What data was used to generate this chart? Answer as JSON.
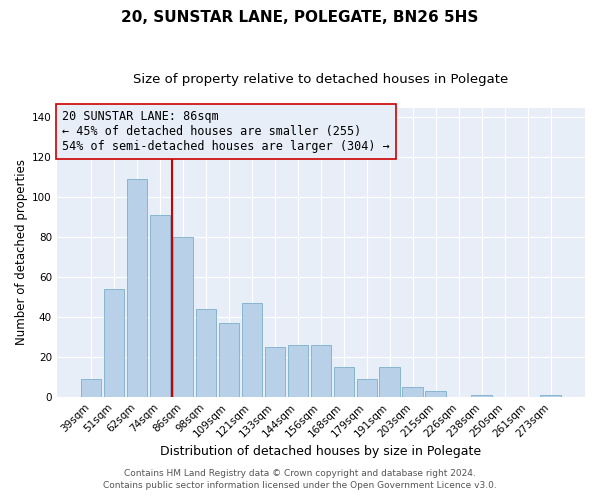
{
  "title": "20, SUNSTAR LANE, POLEGATE, BN26 5HS",
  "subtitle": "Size of property relative to detached houses in Polegate",
  "xlabel": "Distribution of detached houses by size in Polegate",
  "ylabel": "Number of detached properties",
  "bar_labels": [
    "39sqm",
    "51sqm",
    "62sqm",
    "74sqm",
    "86sqm",
    "98sqm",
    "109sqm",
    "121sqm",
    "133sqm",
    "144sqm",
    "156sqm",
    "168sqm",
    "179sqm",
    "191sqm",
    "203sqm",
    "215sqm",
    "226sqm",
    "238sqm",
    "250sqm",
    "261sqm",
    "273sqm"
  ],
  "bar_values": [
    9,
    54,
    109,
    91,
    80,
    44,
    37,
    47,
    25,
    26,
    26,
    15,
    9,
    15,
    5,
    3,
    0,
    1,
    0,
    0,
    1
  ],
  "bar_color": "#b8d0e8",
  "bar_edge_color": "#7aafc8",
  "vline_color": "#cc0000",
  "annotation_text": "20 SUNSTAR LANE: 86sqm\n← 45% of detached houses are smaller (255)\n54% of semi-detached houses are larger (304) →",
  "annotation_box_edgecolor": "#cc0000",
  "ylim": [
    0,
    145
  ],
  "yticks": [
    0,
    20,
    40,
    60,
    80,
    100,
    120,
    140
  ],
  "plot_bg_color": "#e8eef8",
  "fig_bg_color": "#ffffff",
  "footer_line1": "Contains HM Land Registry data © Crown copyright and database right 2024.",
  "footer_line2": "Contains public sector information licensed under the Open Government Licence v3.0.",
  "title_fontsize": 11,
  "subtitle_fontsize": 9.5,
  "xlabel_fontsize": 9,
  "ylabel_fontsize": 8.5,
  "tick_fontsize": 7.5,
  "annotation_fontsize": 8.5,
  "footer_fontsize": 6.5
}
